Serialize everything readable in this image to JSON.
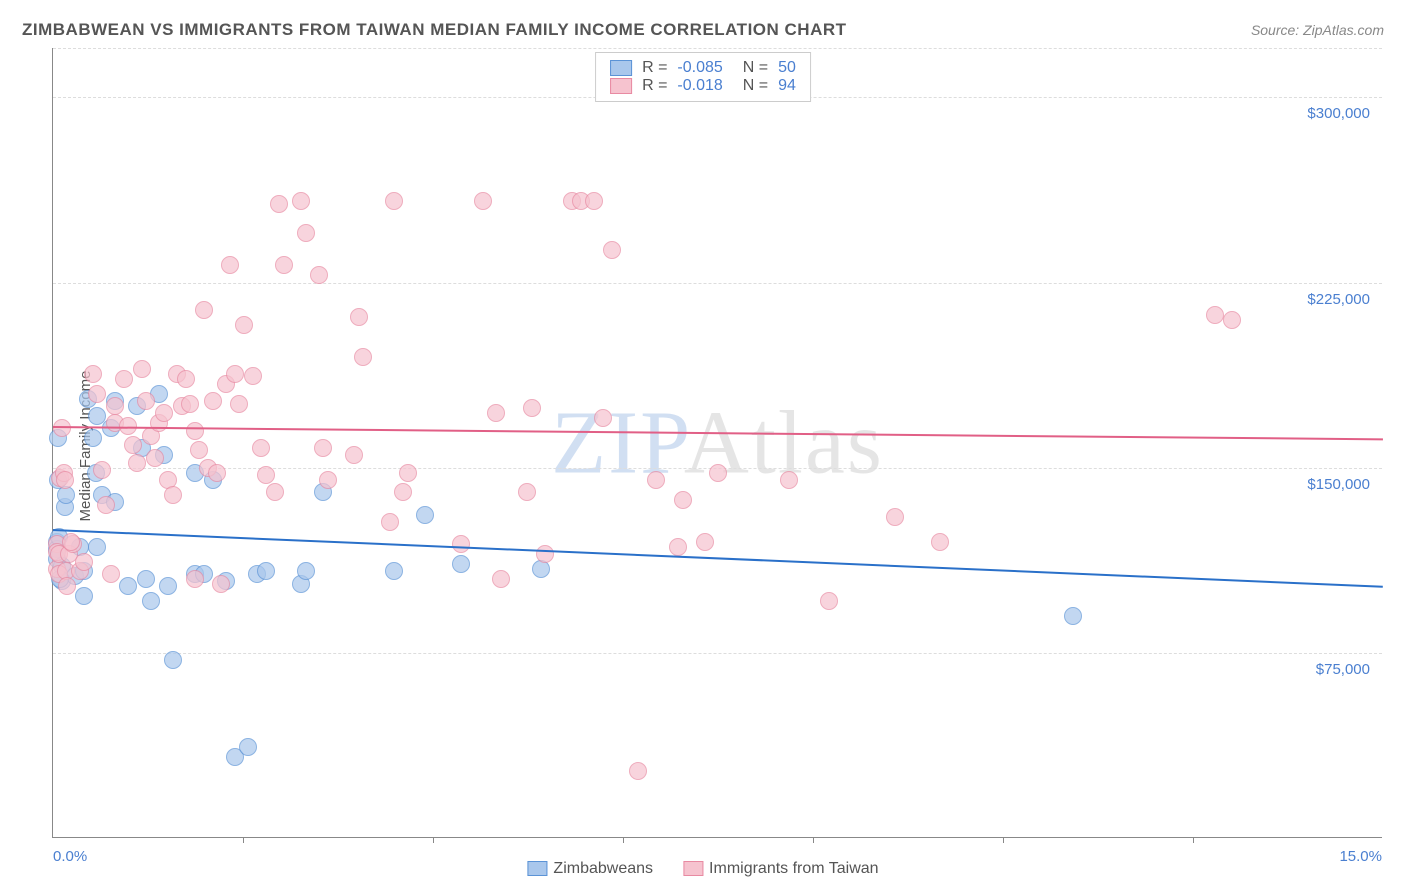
{
  "title": "ZIMBABWEAN VS IMMIGRANTS FROM TAIWAN MEDIAN FAMILY INCOME CORRELATION CHART",
  "source_label": "Source: ",
  "source_site": "ZipAtlas.com",
  "ylabel": "Median Family Income",
  "watermark_a": "ZIP",
  "watermark_b": "Atlas",
  "chart": {
    "type": "scatter",
    "background_color": "#ffffff",
    "grid_color": "#dddddd",
    "axis_color": "#888888",
    "label_color": "#555555",
    "tick_color": "#4a7fd0",
    "xlim": [
      0,
      15
    ],
    "ylim": [
      0,
      320000
    ],
    "yticks": [
      75000,
      150000,
      225000,
      300000
    ],
    "ytick_labels": [
      "$75,000",
      "$150,000",
      "$225,000",
      "$300,000"
    ],
    "xtick_labels": [
      "0.0%",
      "15.0%"
    ],
    "xtick_minor_count": 6,
    "marker_radius": 9,
    "marker_opacity_fill": 0.35,
    "marker_opacity_stroke": 0.9,
    "series": [
      {
        "name": "Zimbabweans",
        "color_fill": "#a9c7ec",
        "color_stroke": "#5b93d6",
        "trend_color": "#2a70c9",
        "R": "-0.085",
        "N": "50",
        "trend": {
          "y_at_xmin": 125000,
          "y_at_xmax": 102000
        },
        "points": [
          [
            0.05,
            120000
          ],
          [
            0.05,
            117000
          ],
          [
            0.05,
            113000
          ],
          [
            0.07,
            122000
          ],
          [
            0.06,
            145000
          ],
          [
            0.06,
            162000
          ],
          [
            0.1,
            104000
          ],
          [
            0.1,
            110000
          ],
          [
            0.14,
            134000
          ],
          [
            0.15,
            139000
          ],
          [
            0.25,
            106000
          ],
          [
            0.35,
            98000
          ],
          [
            0.4,
            178000
          ],
          [
            0.45,
            162000
          ],
          [
            0.48,
            148000
          ],
          [
            0.5,
            171000
          ],
          [
            0.55,
            139000
          ],
          [
            0.65,
            166000
          ],
          [
            0.7,
            177000
          ],
          [
            0.7,
            136000
          ],
          [
            0.85,
            102000
          ],
          [
            0.95,
            175000
          ],
          [
            1.0,
            158000
          ],
          [
            1.05,
            105000
          ],
          [
            1.1,
            96000
          ],
          [
            1.2,
            180000
          ],
          [
            1.25,
            155000
          ],
          [
            1.3,
            102000
          ],
          [
            1.35,
            72000
          ],
          [
            1.6,
            107000
          ],
          [
            1.7,
            107000
          ],
          [
            1.8,
            145000
          ],
          [
            1.95,
            104000
          ],
          [
            2.05,
            33000
          ],
          [
            2.2,
            37000
          ],
          [
            2.3,
            107000
          ],
          [
            2.4,
            108000
          ],
          [
            2.8,
            103000
          ],
          [
            2.85,
            108000
          ],
          [
            3.05,
            140000
          ],
          [
            3.85,
            108000
          ],
          [
            4.2,
            131000
          ],
          [
            4.6,
            111000
          ],
          [
            5.5,
            109000
          ],
          [
            0.3,
            118000
          ],
          [
            0.35,
            108000
          ],
          [
            0.5,
            118000
          ],
          [
            1.6,
            148000
          ],
          [
            0.08,
            105000
          ],
          [
            11.5,
            90000
          ]
        ]
      },
      {
        "name": "Immigrants from Taiwan",
        "color_fill": "#f6c3cf",
        "color_stroke": "#e88aa2",
        "trend_color": "#e15f86",
        "R": "-0.018",
        "N": "94",
        "trend": {
          "y_at_xmin": 167000,
          "y_at_xmax": 162000
        },
        "points": [
          [
            0.05,
            119000
          ],
          [
            0.05,
            116000
          ],
          [
            0.05,
            109000
          ],
          [
            0.07,
            107000
          ],
          [
            0.07,
            115000
          ],
          [
            0.08,
            146000
          ],
          [
            0.1,
            166000
          ],
          [
            0.12,
            148000
          ],
          [
            0.14,
            145000
          ],
          [
            0.15,
            108000
          ],
          [
            0.16,
            102000
          ],
          [
            0.18,
            115000
          ],
          [
            0.22,
            119000
          ],
          [
            0.3,
            108000
          ],
          [
            0.35,
            112000
          ],
          [
            0.45,
            188000
          ],
          [
            0.5,
            180000
          ],
          [
            0.55,
            149000
          ],
          [
            0.6,
            135000
          ],
          [
            0.65,
            107000
          ],
          [
            0.7,
            175000
          ],
          [
            0.7,
            168000
          ],
          [
            0.8,
            186000
          ],
          [
            0.85,
            167000
          ],
          [
            0.9,
            159000
          ],
          [
            0.95,
            152000
          ],
          [
            1.0,
            190000
          ],
          [
            1.05,
            177000
          ],
          [
            1.1,
            163000
          ],
          [
            1.15,
            154000
          ],
          [
            1.2,
            168000
          ],
          [
            1.25,
            172000
          ],
          [
            1.3,
            145000
          ],
          [
            1.35,
            139000
          ],
          [
            1.4,
            188000
          ],
          [
            1.45,
            175000
          ],
          [
            1.5,
            186000
          ],
          [
            1.55,
            176000
          ],
          [
            1.6,
            165000
          ],
          [
            1.6,
            105000
          ],
          [
            1.65,
            157000
          ],
          [
            1.7,
            214000
          ],
          [
            1.75,
            150000
          ],
          [
            1.8,
            177000
          ],
          [
            1.85,
            148000
          ],
          [
            1.9,
            103000
          ],
          [
            1.95,
            184000
          ],
          [
            2.0,
            232000
          ],
          [
            2.05,
            188000
          ],
          [
            2.1,
            176000
          ],
          [
            2.15,
            208000
          ],
          [
            2.25,
            187000
          ],
          [
            2.35,
            158000
          ],
          [
            2.4,
            147000
          ],
          [
            2.5,
            140000
          ],
          [
            2.55,
            257000
          ],
          [
            2.6,
            232000
          ],
          [
            2.8,
            258000
          ],
          [
            2.85,
            245000
          ],
          [
            3.0,
            228000
          ],
          [
            3.05,
            158000
          ],
          [
            3.1,
            145000
          ],
          [
            3.4,
            155000
          ],
          [
            3.45,
            211000
          ],
          [
            3.5,
            195000
          ],
          [
            3.8,
            128000
          ],
          [
            3.85,
            258000
          ],
          [
            3.95,
            140000
          ],
          [
            4.0,
            148000
          ],
          [
            4.6,
            119000
          ],
          [
            4.85,
            258000
          ],
          [
            5.0,
            172000
          ],
          [
            5.05,
            105000
          ],
          [
            5.35,
            140000
          ],
          [
            5.4,
            174000
          ],
          [
            5.55,
            115000
          ],
          [
            5.85,
            258000
          ],
          [
            5.95,
            258000
          ],
          [
            6.1,
            258000
          ],
          [
            6.2,
            170000
          ],
          [
            6.3,
            238000
          ],
          [
            6.6,
            27000
          ],
          [
            6.8,
            145000
          ],
          [
            7.05,
            118000
          ],
          [
            7.1,
            137000
          ],
          [
            7.35,
            120000
          ],
          [
            7.5,
            148000
          ],
          [
            8.3,
            145000
          ],
          [
            8.75,
            96000
          ],
          [
            9.5,
            130000
          ],
          [
            10.0,
            120000
          ],
          [
            13.1,
            212000
          ],
          [
            13.3,
            210000
          ],
          [
            0.2,
            120000
          ]
        ]
      }
    ]
  },
  "legend_r_label": "R =",
  "legend_n_label": "N ="
}
